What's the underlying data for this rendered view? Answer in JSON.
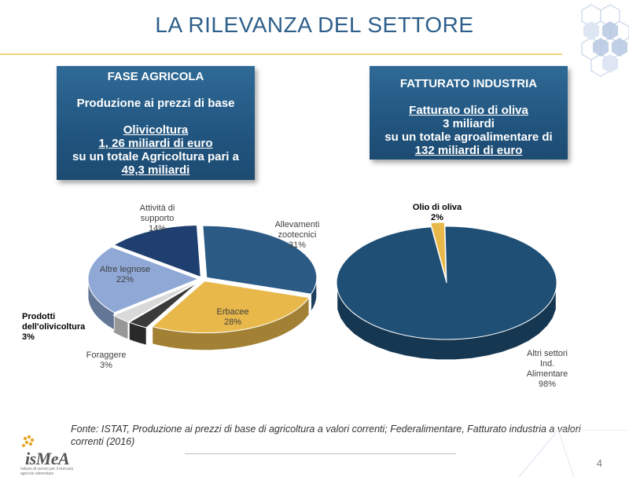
{
  "slide": {
    "title": "LA RILEVANZA DEL SETTORE",
    "page_number": "4"
  },
  "box_left": {
    "heading": "FASE AGRICOLA",
    "subheading": "Produzione ai prezzi di base",
    "line1": "Olivicoltura",
    "line2": "1, 26 miliardi di euro",
    "line3": "su un totale Agricoltura pari a",
    "line4": "49,3 miliardi"
  },
  "box_right": {
    "heading": "FATTURATO INDUSTRIA",
    "line1": "Fatturato  olio di oliva",
    "line2": "3 miliardi",
    "line3": "su un totale agroalimentare di",
    "line4": "132 miliardi di euro"
  },
  "chart_data": [
    {
      "type": "pie",
      "slices": [
        {
          "label": "Allevamenti zootecnici",
          "value": 31,
          "pct": "31%",
          "color": "#2b5a85"
        },
        {
          "label": "Erbacee",
          "value": 28,
          "pct": "28%",
          "color": "#e8b84a"
        },
        {
          "label": "Prodotti dell'olivicoltura",
          "value": 3,
          "pct": "3%",
          "color": "#3b3b3b"
        },
        {
          "label": "Foraggere",
          "value": 3,
          "pct": "3%",
          "color": "#d9d9d9"
        },
        {
          "label": "Altre legnose",
          "value": 22,
          "pct": "22%",
          "color": "#8fa8d6"
        },
        {
          "label": "Attività di supporto",
          "value": 14,
          "pct": "14%",
          "color": "#1f3f70"
        }
      ]
    },
    {
      "type": "pie",
      "slices": [
        {
          "label": "Olio di oliva",
          "value": 2,
          "pct": "2%",
          "color": "#e8b84a"
        },
        {
          "label": "Altri settori Ind. Alimentare",
          "value": 98,
          "pct": "98%",
          "color": "#1f4f75"
        }
      ]
    }
  ],
  "labels": {
    "attivita_1": "Attività di",
    "attivita_2": "supporto",
    "attivita_pct": "14%",
    "allevamenti_1": "Allevamenti",
    "allevamenti_2": "zootecnici",
    "allevamenti_pct": "31%",
    "altre_1": "Altre legnose",
    "altre_pct": "22%",
    "erbacee_1": "Erbacee",
    "erbacee_pct": "28%",
    "prodotti_1": "Prodotti",
    "prodotti_2": "dell'olivicoltura",
    "prodotti_pct": "3%",
    "foraggere_1": "Foraggere",
    "foraggere_pct": "3%",
    "olio_1": "Olio di oliva",
    "olio_pct": "2%",
    "altri_1": "Altri settori",
    "altri_2": "Ind.",
    "altri_3": "Alimentare",
    "altri_pct": "98%"
  },
  "source": "Fonte: ISTAT, Produzione ai prezzi di base di agricoltura a valori correnti; Federalimentare, Fatturato industria a valori correnti (2016)",
  "logo": {
    "name": "isMeA",
    "tagline": "Istituto di servizi per il mercato agricolo alimentare"
  }
}
